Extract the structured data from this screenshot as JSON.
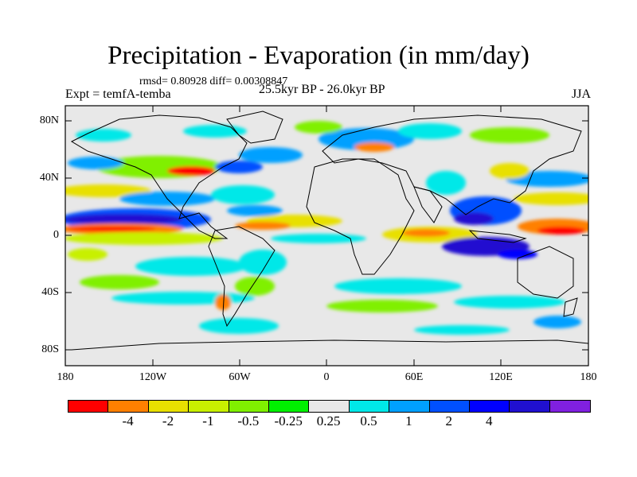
{
  "title": "Precipitation - Evaporation (in mm/day)",
  "stats": "rmsd= 0.80928 diff= 0.00308847",
  "experiment": "Expt = temfA-temba",
  "period": "25.5kyr BP - 26.0kyr BP",
  "season": "JJA",
  "axes": {
    "y_labels": [
      "80N",
      "40N",
      "0",
      "40S",
      "80S"
    ],
    "x_labels": [
      "180",
      "120W",
      "60W",
      "0",
      "60E",
      "120E",
      "180"
    ]
  },
  "colorbar": {
    "colors": [
      "#ff0000",
      "#ff8000",
      "#e8e000",
      "#c8f000",
      "#80f000",
      "#00f000",
      "#e8e8e8",
      "#00e8e8",
      "#00a0ff",
      "#0050ff",
      "#0000ff",
      "#2010d0",
      "#8020e0"
    ],
    "labels": [
      "-4",
      "-2",
      "-1",
      "-0.5",
      "-0.25",
      "0.25",
      "0.5",
      "1",
      "2",
      "4"
    ]
  }
}
